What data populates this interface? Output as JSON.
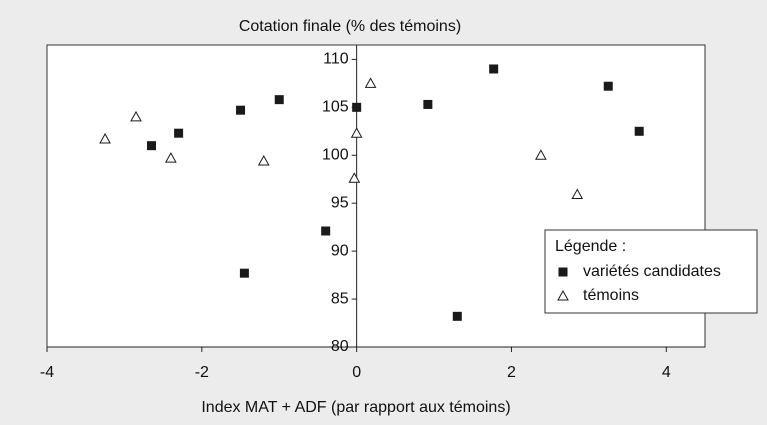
{
  "chart_data": {
    "type": "scatter",
    "title": "Cotation finale (% des témoins)",
    "x_label": "Index MAT + ADF (par rapport aux témoins)",
    "legend_title": "Légende :",
    "legend": "lower right",
    "xlim": [
      -4,
      4.5
    ],
    "ylim": [
      80,
      111.5
    ],
    "xticks": [
      -4,
      -2,
      0,
      2,
      4
    ],
    "yticks": [
      80,
      85,
      90,
      95,
      100,
      105,
      110
    ],
    "series": [
      {
        "name": "variétés candidates",
        "color": "#1a1a1a",
        "marker": "square",
        "x": [
          -2.65,
          -2.3,
          -1.5,
          -1.45,
          -1.0,
          -0.4,
          0.0,
          0.92,
          1.3,
          1.77,
          3.25,
          3.65
        ],
        "values": [
          101,
          102.3,
          104.7,
          87.7,
          105.8,
          92.1,
          105,
          105.3,
          83.2,
          109,
          107.2,
          102.5
        ]
      },
      {
        "name": "témoins",
        "color": "#1a1a1a",
        "marker": "triangle",
        "x": [
          -3.25,
          -2.85,
          -2.4,
          -1.2,
          0.18,
          0.0,
          -0.03,
          2.38,
          2.85
        ],
        "values": [
          101.7,
          104,
          99.7,
          99.4,
          107.5,
          102.3,
          97.6,
          100,
          95.9
        ]
      }
    ]
  }
}
